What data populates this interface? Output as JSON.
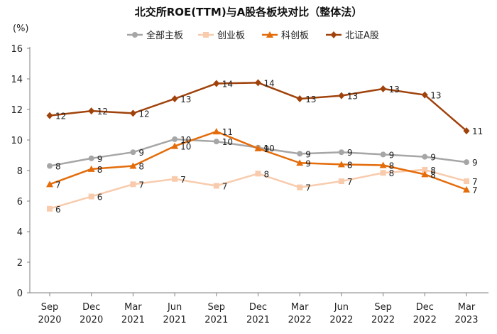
{
  "chart_data": {
    "type": "line",
    "title": "北交所ROE(TTM)与A股各板块对比（整体法）",
    "ylabel": "(%)",
    "xlabel": "",
    "ylim": [
      0,
      16
    ],
    "yticks": [
      0,
      2,
      4,
      6,
      8,
      10,
      12,
      14,
      16
    ],
    "grid": false,
    "legend": "top-center",
    "categories": [
      [
        "Sep",
        "2020"
      ],
      [
        "Dec",
        "2020"
      ],
      [
        "Mar",
        "2021"
      ],
      [
        "Jun",
        "2021"
      ],
      [
        "Sep",
        "2021"
      ],
      [
        "Dec",
        "2021"
      ],
      [
        "Mar",
        "2022"
      ],
      [
        "Jun",
        "2022"
      ],
      [
        "Sep",
        "2022"
      ],
      [
        "Dec",
        "2022"
      ],
      [
        "Mar",
        "2023"
      ]
    ],
    "series": [
      {
        "name": "全部主板",
        "color": "#A6A6A6",
        "marker": "circle",
        "values": [
          8.3,
          8.8,
          9.2,
          10.05,
          9.9,
          9.5,
          9.1,
          9.2,
          9.05,
          8.9,
          8.55
        ],
        "labels": [
          "8",
          "9",
          "9",
          "10",
          "10",
          "10",
          "9",
          "9",
          "9",
          "9",
          "9"
        ]
      },
      {
        "name": "创业板",
        "color": "#F8CBAD",
        "marker": "square",
        "values": [
          5.5,
          6.3,
          7.1,
          7.45,
          7.0,
          7.8,
          6.9,
          7.3,
          7.85,
          8.05,
          7.3
        ],
        "labels": [
          "6",
          "6",
          "7",
          "7",
          "7",
          "8",
          "7",
          "7",
          "8",
          "8",
          "7"
        ]
      },
      {
        "name": "科创板",
        "color": "#E46C0A",
        "marker": "triangle",
        "values": [
          7.1,
          8.1,
          8.3,
          9.6,
          10.55,
          9.45,
          8.5,
          8.4,
          8.35,
          7.75,
          6.75
        ],
        "labels": [
          "7",
          "8",
          "8",
          "10",
          "11",
          "9",
          "9",
          "8",
          "8",
          "8",
          "7"
        ]
      },
      {
        "name": "北证A股",
        "color": "#A0420B",
        "marker": "diamond",
        "values": [
          11.6,
          11.9,
          11.75,
          12.7,
          13.7,
          13.75,
          12.7,
          12.9,
          13.35,
          12.95,
          10.6
        ],
        "labels": [
          "12",
          "12",
          "12",
          "13",
          "14",
          "14",
          "13",
          "13",
          "13",
          "13",
          "11"
        ]
      }
    ]
  }
}
